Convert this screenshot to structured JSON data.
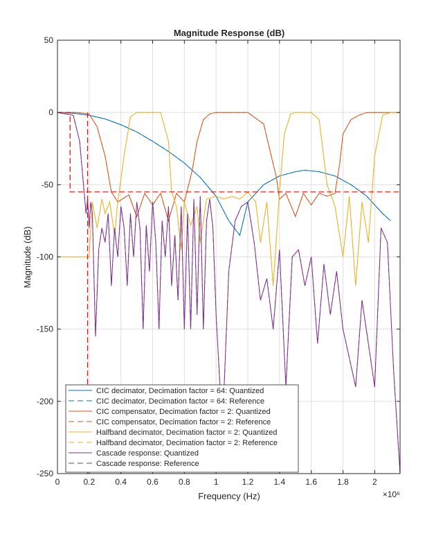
{
  "chart_data": {
    "type": "line",
    "title": "Magnitude Response (dB)",
    "xlabel": "Frequency (Hz)",
    "ylabel": "Magnitude (dB)",
    "x_exponent_label": "×10⁶",
    "xlim": [
      0,
      2.16
    ],
    "ylim": [
      -250,
      50
    ],
    "x_ticks": [
      0,
      0.2,
      0.4,
      0.6,
      0.8,
      1,
      1.2,
      1.4,
      1.6,
      1.8,
      2
    ],
    "x_tick_labels": [
      "0",
      "0.2",
      "0.4",
      "0.6",
      "0.8",
      "1",
      "1.2",
      "1.4",
      "1.6",
      "1.8",
      "2"
    ],
    "y_ticks": [
      50,
      0,
      -50,
      -100,
      -150,
      -200,
      -250
    ],
    "y_tick_labels": [
      "50",
      "0",
      "-50",
      "-100",
      "-150",
      "-200",
      "-250"
    ],
    "grid": true,
    "legend_position": "bottom-left",
    "colors": {
      "cic": "#0072BD",
      "compensator": "#D95319",
      "halfband": "#EDB120",
      "cascade": "#7E2F8E",
      "mask": "#FF0000"
    },
    "legend": [
      {
        "label": "CIC decimator, Decimation factor = 64: Quantized",
        "color": "#0072BD",
        "dash": false
      },
      {
        "label": "CIC decimator, Decimation factor = 64: Reference",
        "color": "#0072BD",
        "dash": true
      },
      {
        "label": "CIC compensator, Decimation factor = 2: Quantized",
        "color": "#D95319",
        "dash": false
      },
      {
        "label": "CIC compensator, Decimation factor = 2: Reference",
        "color": "#D95319",
        "dash": true
      },
      {
        "label": "Halfband decimator, Decimation factor = 2: Quantized",
        "color": "#EDB120",
        "dash": false
      },
      {
        "label": "Halfband decimator, Decimation factor = 2: Reference",
        "color": "#EDB120",
        "dash": true
      },
      {
        "label": "Cascade response: Quantized",
        "color": "#7E2F8E",
        "dash": false
      },
      {
        "label": "Cascade response: Reference",
        "color": "#7E2F8E",
        "dash": true
      }
    ],
    "series": [
      {
        "key": "cic",
        "legend_index": 0,
        "x": [
          0,
          0.1,
          0.2,
          0.3,
          0.4,
          0.5,
          0.6,
          0.7,
          0.8,
          0.9,
          1.0,
          1.08,
          1.15,
          1.2,
          1.3,
          1.4,
          1.5,
          1.56,
          1.65,
          1.75,
          1.85,
          1.95,
          2.05,
          2.1
        ],
        "y": [
          0,
          -0.5,
          -2,
          -4.5,
          -8.5,
          -13.5,
          -20,
          -27,
          -35,
          -45,
          -58,
          -75,
          -85,
          -62,
          -50,
          -44,
          -41,
          -40,
          -41,
          -44,
          -50,
          -58,
          -70,
          -75
        ]
      },
      {
        "key": "compensator",
        "legend_index": 2,
        "x": [
          0,
          0.12,
          0.2,
          0.25,
          0.3,
          0.34,
          0.38,
          0.45,
          0.5,
          0.55,
          0.6,
          0.65,
          0.7,
          0.75,
          0.8,
          0.85,
          0.88,
          0.92,
          0.96,
          1.0,
          1.02,
          1.1,
          1.2,
          1.3,
          1.38,
          1.4,
          1.44,
          1.5,
          1.55,
          1.6,
          1.65,
          1.7,
          1.75,
          1.78,
          1.8,
          1.85,
          1.9,
          1.95,
          2.0,
          2.05,
          2.1,
          2.16
        ],
        "y": [
          0,
          0,
          -1,
          -10,
          -30,
          -55,
          -62,
          -57,
          -72,
          -56,
          -64,
          -56,
          -75,
          -56,
          -62,
          -40,
          -20,
          -5,
          -1,
          0,
          0,
          0,
          0,
          -8,
          -45,
          -60,
          -56,
          -72,
          -56,
          -64,
          -56,
          -58,
          -56,
          -35,
          -15,
          -5,
          -2,
          0,
          0,
          0,
          0,
          0
        ]
      },
      {
        "key": "halfband",
        "legend_index": 4,
        "x": [
          0,
          0.2,
          0.22,
          0.25,
          0.28,
          0.3,
          0.33,
          0.36,
          0.38,
          0.42,
          0.46,
          0.5,
          0.55,
          0.6,
          0.65,
          0.7,
          0.72,
          0.75,
          0.78,
          0.8,
          0.84,
          0.88,
          0.9,
          0.94,
          1.0,
          1.05,
          1.1,
          1.15,
          1.2,
          1.25,
          1.28,
          1.32,
          1.36,
          1.4,
          1.43,
          1.47,
          1.5,
          1.55,
          1.6,
          1.65,
          1.7,
          1.75,
          1.8,
          1.84,
          1.88,
          1.92,
          1.96,
          2.0,
          2.05,
          2.1,
          2.16
        ],
        "y": [
          -100,
          -100,
          -62,
          -80,
          -60,
          -70,
          -62,
          -85,
          -62,
          -30,
          -3,
          0,
          0,
          0,
          0,
          -20,
          -55,
          -65,
          -95,
          -62,
          -78,
          -65,
          -90,
          -60,
          -58,
          -60,
          -58,
          -60,
          -55,
          -62,
          -90,
          -62,
          -120,
          -55,
          -15,
          -1,
          0,
          0,
          0,
          -5,
          -50,
          -65,
          -100,
          -58,
          -120,
          -62,
          -90,
          -30,
          -2,
          0,
          0
        ]
      },
      {
        "key": "cascade",
        "legend_index": 6,
        "x": [
          0,
          0.1,
          0.14,
          0.16,
          0.18,
          0.19,
          0.2,
          0.21,
          0.22,
          0.24,
          0.26,
          0.28,
          0.3,
          0.32,
          0.34,
          0.36,
          0.38,
          0.4,
          0.42,
          0.44,
          0.46,
          0.48,
          0.5,
          0.52,
          0.54,
          0.56,
          0.58,
          0.6,
          0.62,
          0.64,
          0.66,
          0.68,
          0.7,
          0.72,
          0.74,
          0.76,
          0.78,
          0.8,
          0.82,
          0.84,
          0.86,
          0.88,
          0.9,
          0.92,
          0.94,
          0.96,
          0.98,
          1.0,
          1.04,
          1.08,
          1.12,
          1.16,
          1.2,
          1.24,
          1.28,
          1.32,
          1.36,
          1.4,
          1.44,
          1.48,
          1.52,
          1.56,
          1.6,
          1.64,
          1.68,
          1.72,
          1.76,
          1.8,
          1.84,
          1.88,
          1.92,
          1.96,
          2.0,
          2.04,
          2.08,
          2.12,
          2.16
        ],
        "y": [
          0,
          -2,
          -20,
          -45,
          -70,
          -60,
          -80,
          -62,
          -70,
          -155,
          -95,
          -80,
          -90,
          -70,
          -120,
          -80,
          -100,
          -65,
          -80,
          -120,
          -70,
          -100,
          -62,
          -80,
          -150,
          -78,
          -110,
          -62,
          -90,
          -150,
          -75,
          -100,
          -65,
          -120,
          -85,
          -130,
          -65,
          -150,
          -70,
          -150,
          -60,
          -140,
          -58,
          -150,
          -75,
          -60,
          -80,
          -140,
          -220,
          -110,
          -75,
          -65,
          -62,
          -90,
          -130,
          -115,
          -150,
          -95,
          -190,
          -100,
          -95,
          -120,
          -100,
          -160,
          -105,
          -140,
          -110,
          -150,
          -170,
          -190,
          -130,
          -160,
          -190,
          -80,
          -90,
          -180,
          -250
        ]
      }
    ],
    "mask_line": {
      "x": [
        0,
        0.08,
        0.08,
        2.16
      ],
      "y": [
        0,
        0,
        -55,
        -55
      ]
    },
    "stopband_line": {
      "x": [
        0.19,
        0.19
      ],
      "y": [
        0,
        -250
      ]
    }
  }
}
